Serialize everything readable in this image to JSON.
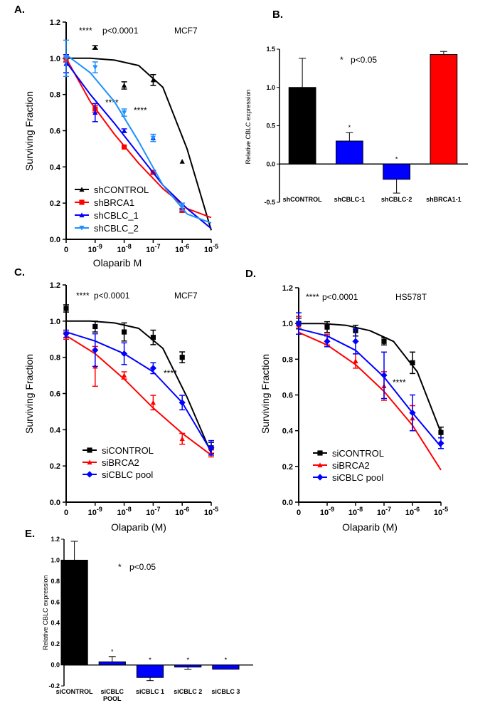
{
  "chart_data": [
    {
      "id": "A",
      "panel_label": "A.",
      "type": "line",
      "xlabel": "Olaparib M",
      "ylabel": "Surviving Fraction",
      "ylim": [
        0,
        1.2
      ],
      "yticks": [
        "0.0",
        "0.2",
        "0.4",
        "0.6",
        "0.8",
        "1.0",
        "1.2"
      ],
      "xticks": [
        {
          "base": "0",
          "exp": ""
        },
        {
          "base": "10",
          "exp": "-9"
        },
        {
          "base": "10",
          "exp": "-8"
        },
        {
          "base": "10",
          "exp": "-7"
        },
        {
          "base": "10",
          "exp": "-6"
        },
        {
          "base": "10",
          "exp": "-5"
        }
      ],
      "annotations": {
        "stars": "****",
        "pvalue": "p<0.0001",
        "cell_line": "MCF7",
        "inline_stars": [
          "****",
          "****"
        ]
      },
      "series": [
        {
          "name": "shCONTROL",
          "color": "#000000",
          "marker": "triangle-up",
          "points": [
            [
              0,
              1.0,
              0.02
            ],
            [
              1,
              1.06,
              0.01
            ],
            [
              2,
              0.85,
              0.02
            ],
            [
              3,
              0.88,
              0.03
            ],
            [
              4,
              0.43,
              0.0
            ]
          ],
          "curve": [
            1.0,
            1.0,
            0.99,
            0.96,
            0.84,
            0.5,
            0.05
          ]
        },
        {
          "name": "shBRCA1",
          "color": "#ff0000",
          "marker": "square",
          "points": [
            [
              0,
              1.0,
              0.02
            ],
            [
              1,
              0.72,
              0.02
            ],
            [
              2,
              0.51,
              0.0
            ],
            [
              3,
              0.37,
              0.01
            ],
            [
              4,
              0.16,
              0.01
            ]
          ],
          "curve": [
            1.0,
            0.76,
            0.58,
            0.42,
            0.28,
            0.17,
            0.12
          ]
        },
        {
          "name": "shCBLC_1",
          "color": "#0000ff",
          "marker": "triangle-up",
          "points": [
            [
              0,
              0.97,
              0.05
            ],
            [
              1,
              0.7,
              0.05
            ],
            [
              2,
              0.6,
              0.01
            ],
            [
              3,
              0.56,
              0.0
            ],
            [
              4,
              0.17,
              0.0
            ]
          ],
          "curve": [
            0.98,
            0.8,
            0.64,
            0.47,
            0.3,
            0.17,
            0.06
          ]
        },
        {
          "name": "shCBLC_2",
          "color": "#1e90ff",
          "marker": "triangle-down",
          "points": [
            [
              0,
              1.0,
              0.1
            ],
            [
              1,
              0.95,
              0.03
            ],
            [
              2,
              0.7,
              0.02
            ],
            [
              3,
              0.56,
              0.02
            ],
            [
              4,
              0.18,
              0.02
            ]
          ],
          "curve": [
            1.02,
            0.92,
            0.76,
            0.54,
            0.3,
            0.14,
            0.09
          ]
        }
      ]
    },
    {
      "id": "B",
      "panel_label": "B.",
      "type": "bar",
      "ylabel": "Relative CBLC expression",
      "ylim": [
        -0.5,
        1.5
      ],
      "yticks": [
        "-0.5",
        "0.0",
        "0.5",
        "1.0",
        "1.5"
      ],
      "categories": [
        "shCONTROL",
        "shCBLC-1",
        "shCBLC-2",
        "shBRCA1-1"
      ],
      "values": [
        1.0,
        0.3,
        -0.2,
        1.43
      ],
      "errors": [
        0.38,
        0.11,
        0.18,
        0.04
      ],
      "colors": [
        "#000000",
        "#0000ff",
        "#0000ff",
        "#ff0000"
      ],
      "stars": [
        "",
        "*",
        "*",
        ""
      ],
      "annotations": {
        "stars": "*",
        "pvalue": "p<0.05"
      }
    },
    {
      "id": "C",
      "panel_label": "C.",
      "type": "line",
      "xlabel": "Olaparib (M)",
      "ylabel": "Surviving Fraction",
      "ylim": [
        0,
        1.2
      ],
      "yticks": [
        "0.0",
        "0.2",
        "0.4",
        "0.6",
        "0.8",
        "1.0",
        "1.2"
      ],
      "xticks": [
        {
          "base": "0",
          "exp": ""
        },
        {
          "base": "10",
          "exp": "-9"
        },
        {
          "base": "10",
          "exp": "-8"
        },
        {
          "base": "10",
          "exp": "-7"
        },
        {
          "base": "10",
          "exp": "-6"
        },
        {
          "base": "10",
          "exp": "-5"
        }
      ],
      "annotations": {
        "stars": "****",
        "pvalue": "p<0.0001",
        "cell_line": "MCF7",
        "inline_stars": [
          "****"
        ]
      },
      "series": [
        {
          "name": "siCONTROL",
          "color": "#000000",
          "marker": "square",
          "points": [
            [
              0,
              1.07,
              0.02
            ],
            [
              1,
              0.97,
              0.03
            ],
            [
              2,
              0.94,
              0.05
            ],
            [
              3,
              0.91,
              0.04
            ],
            [
              4,
              0.8,
              0.03
            ],
            [
              5,
              0.3,
              0.03
            ]
          ],
          "curve": [
            1.0,
            1.0,
            0.99,
            0.96,
            0.85,
            0.58,
            0.27
          ]
        },
        {
          "name": "siBRCA2",
          "color": "#ff0000",
          "marker": "triangle-up",
          "points": [
            [
              0,
              0.92,
              0.02
            ],
            [
              1,
              0.75,
              0.11
            ],
            [
              2,
              0.7,
              0.02
            ],
            [
              3,
              0.55,
              0.04
            ],
            [
              4,
              0.35,
              0.03
            ],
            [
              5,
              0.27,
              0.02
            ]
          ],
          "curve": [
            0.92,
            0.82,
            0.68,
            0.52,
            0.38,
            0.26
          ]
        },
        {
          "name": "siCBLC pool",
          "color": "#0000ff",
          "marker": "diamond",
          "points": [
            [
              0,
              0.93,
              0.02
            ],
            [
              1,
              0.84,
              0.09
            ],
            [
              2,
              0.82,
              0.06
            ],
            [
              3,
              0.74,
              0.03
            ],
            [
              4,
              0.55,
              0.04
            ],
            [
              5,
              0.3,
              0.04
            ]
          ],
          "curve": [
            0.94,
            0.89,
            0.82,
            0.72,
            0.55,
            0.28
          ]
        }
      ]
    },
    {
      "id": "D",
      "panel_label": "D.",
      "type": "line",
      "xlabel": "Olaparib (M)",
      "ylabel": "Surviving Fraction",
      "ylim": [
        0,
        1.2
      ],
      "yticks": [
        "0.0",
        "0.2",
        "0.4",
        "0.6",
        "0.8",
        "1.0",
        "1.2"
      ],
      "xticks": [
        {
          "base": "0",
          "exp": ""
        },
        {
          "base": "10",
          "exp": "-9"
        },
        {
          "base": "10",
          "exp": "-8"
        },
        {
          "base": "10",
          "exp": "-7"
        },
        {
          "base": "10",
          "exp": "-6"
        },
        {
          "base": "10",
          "exp": "-5"
        }
      ],
      "annotations": {
        "stars": "****",
        "pvalue": "p<0.0001",
        "cell_line": "HS578T",
        "inline_stars": [
          "****"
        ]
      },
      "series": [
        {
          "name": "siCONTROL",
          "color": "#000000",
          "marker": "square",
          "points": [
            [
              0,
              1.0,
              0.03
            ],
            [
              1,
              0.98,
              0.03
            ],
            [
              2,
              0.96,
              0.03
            ],
            [
              3,
              0.9,
              0.02
            ],
            [
              4,
              0.78,
              0.06
            ],
            [
              5,
              0.39,
              0.03
            ]
          ],
          "curve": [
            1.0,
            1.0,
            0.99,
            0.96,
            0.9,
            0.73,
            0.39
          ]
        },
        {
          "name": "siBRCA2",
          "color": "#ff0000",
          "marker": "triangle-up",
          "points": [
            [
              0,
              0.99,
              0.05
            ],
            [
              1,
              0.91,
              0.03
            ],
            [
              2,
              0.79,
              0.04
            ],
            [
              3,
              0.65,
              0.08
            ],
            [
              4,
              0.47,
              0.07
            ]
          ],
          "curve": [
            0.95,
            0.88,
            0.77,
            0.62,
            0.43,
            0.18
          ]
        },
        {
          "name": "siCBLC pool",
          "color": "#0000ff",
          "marker": "diamond",
          "points": [
            [
              0,
              1.0,
              0.06
            ],
            [
              1,
              0.9,
              0.03
            ],
            [
              2,
              0.9,
              0.07
            ],
            [
              3,
              0.71,
              0.13
            ],
            [
              4,
              0.5,
              0.1
            ],
            [
              5,
              0.33,
              0.03
            ]
          ],
          "curve": [
            0.97,
            0.93,
            0.85,
            0.7,
            0.5,
            0.31
          ]
        }
      ]
    },
    {
      "id": "E",
      "panel_label": "E.",
      "type": "bar",
      "ylabel": "Relative CBLC expression",
      "ylim": [
        -0.2,
        1.2
      ],
      "yticks": [
        "-0.2",
        "0.0",
        "0.2",
        "0.4",
        "0.6",
        "0.8",
        "1.0",
        "1.2"
      ],
      "categories": [
        [
          "siCONTROL"
        ],
        [
          "siCBLC",
          "POOL"
        ],
        [
          "siCBLC 1"
        ],
        [
          "siCBLC 2"
        ],
        [
          "siCBLC 3"
        ]
      ],
      "values": [
        1.0,
        0.03,
        -0.12,
        -0.02,
        -0.04
      ],
      "errors": [
        0.18,
        0.05,
        0.03,
        0.02,
        0.0
      ],
      "colors": [
        "#000000",
        "#0000ff",
        "#0000ff",
        "#0000ff",
        "#0000ff"
      ],
      "stars": [
        "",
        "*",
        "*",
        "*",
        "*"
      ],
      "annotations": {
        "stars": "*",
        "pvalue": "p<0.05"
      }
    }
  ]
}
